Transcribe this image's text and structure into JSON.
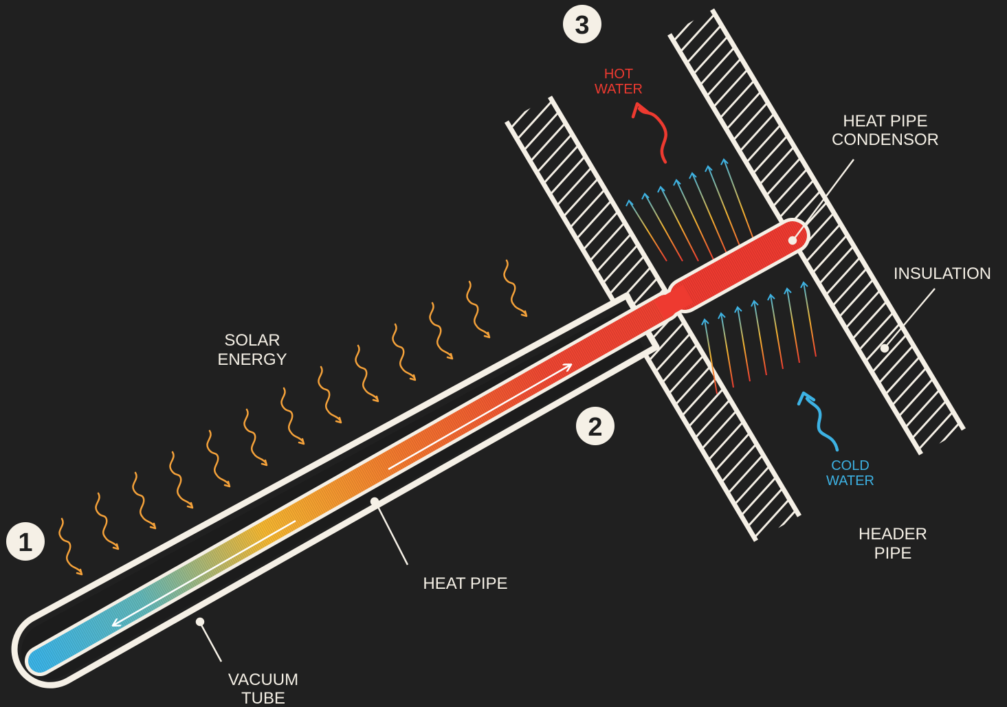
{
  "steps": {
    "one": "1",
    "two": "2",
    "three": "3"
  },
  "labels": {
    "solar_energy": [
      "SOLAR",
      "ENERGY"
    ],
    "hot_water": [
      "HOT",
      "WATER"
    ],
    "cold_water": [
      "COLD",
      "WATER"
    ],
    "heat_pipe_condensor": [
      "HEAT PIPE",
      "CONDENSOR"
    ],
    "insulation": "INSULATION",
    "header_pipe": [
      "HEADER",
      "PIPE"
    ],
    "heat_pipe": "HEAT PIPE",
    "vacuum_tube": [
      "VACUUM",
      "TUBE"
    ]
  },
  "colors": {
    "background": "#202020",
    "outline": "#f5f0e6",
    "hot": "#ee3a30",
    "warm": "#f07c2c",
    "yellow": "#f5b731",
    "cold": "#3db2e3",
    "solar_wave": "#f5a23a"
  }
}
